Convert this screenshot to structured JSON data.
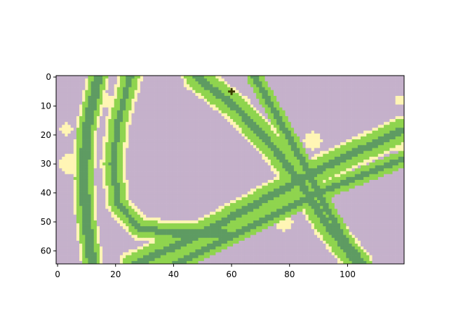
{
  "chart_data": {
    "type": "heatmap",
    "title": "",
    "xlabel": "",
    "ylabel": "",
    "grid": false,
    "legend": "none",
    "image": {
      "cols": 120,
      "rows": 65,
      "origin": "upper"
    },
    "xlim": [
      -0.5,
      119.5
    ],
    "ylim": [
      64.5,
      -0.5
    ],
    "x_ticks": [
      0,
      20,
      40,
      60,
      80,
      100
    ],
    "y_ticks": [
      0,
      10,
      20,
      30,
      40,
      50,
      60
    ],
    "x_tick_labels": [
      "0",
      "20",
      "40",
      "60",
      "80",
      "100"
    ],
    "y_tick_labels": [
      "0",
      "10",
      "20",
      "30",
      "40",
      "50",
      "60"
    ],
    "classes": [
      {
        "id": 0,
        "color": "#c5b1cb"
      },
      {
        "id": 1,
        "color": "#fff5b5"
      },
      {
        "id": 2,
        "color": "#8fd44e"
      },
      {
        "id": 3,
        "color": "#5e9b62"
      }
    ],
    "marker": {
      "x": 60,
      "y": 5,
      "symbol": "plus",
      "color": "#3b3b00"
    },
    "bands": [
      {
        "points": [
          [
            12,
            65
          ],
          [
            10,
            50
          ],
          [
            9,
            35
          ],
          [
            10,
            18
          ],
          [
            14,
            0
          ]
        ],
        "layers": [
          [
            3.8,
            1
          ],
          [
            3.0,
            2
          ],
          [
            1.6,
            3
          ]
        ]
      },
      {
        "points": [
          [
            25,
            0
          ],
          [
            21,
            15
          ],
          [
            19,
            30
          ],
          [
            21,
            44
          ],
          [
            28,
            52
          ],
          [
            40,
            54
          ],
          [
            58,
            54
          ]
        ],
        "layers": [
          [
            4.2,
            1
          ],
          [
            3.0,
            2
          ],
          [
            1.0,
            3
          ]
        ]
      },
      {
        "points": [
          [
            48,
            0
          ],
          [
            62,
            11
          ],
          [
            75,
            25
          ],
          [
            84,
            37
          ],
          [
            93,
            51
          ],
          [
            104,
            65
          ]
        ],
        "layers": [
          [
            5.0,
            1
          ],
          [
            4.0,
            2
          ],
          [
            1.3,
            3
          ]
        ]
      },
      {
        "points": [
          [
            26,
            65
          ],
          [
            48,
            55
          ],
          [
            70,
            43
          ],
          [
            92,
            31
          ],
          [
            120,
            18
          ]
        ],
        "layers": [
          [
            5.0,
            1
          ],
          [
            4.0,
            2
          ],
          [
            1.3,
            3
          ]
        ]
      },
      {
        "points": [
          [
            68,
            0
          ],
          [
            76,
            14
          ],
          [
            86,
            32
          ],
          [
            92,
            44
          ],
          [
            100,
            58
          ],
          [
            106,
            65
          ]
        ],
        "layers": [
          [
            2.8,
            2
          ],
          [
            1.1,
            3
          ]
        ]
      },
      {
        "points": [
          [
            40,
            65
          ],
          [
            66,
            52
          ],
          [
            90,
            40
          ],
          [
            120,
            28
          ]
        ],
        "layers": [
          [
            2.8,
            2
          ],
          [
            1.1,
            3
          ]
        ]
      }
    ],
    "patches": [
      {
        "cx": 4,
        "cy": 30,
        "r": 3.2,
        "value": 1
      },
      {
        "cx": 3,
        "cy": 18,
        "r": 2.0,
        "value": 1
      },
      {
        "cx": 16,
        "cy": 8,
        "r": 2.6,
        "value": 1
      },
      {
        "cx": 88,
        "cy": 22,
        "r": 3.0,
        "value": 1
      },
      {
        "cx": 78,
        "cy": 50,
        "r": 3.0,
        "value": 1
      },
      {
        "cx": 82,
        "cy": 41,
        "r": 2.0,
        "value": 0
      },
      {
        "cx": 34,
        "cy": 51,
        "r": 2.2,
        "value": 1
      },
      {
        "cx": 118,
        "cy": 24,
        "r": 1.5,
        "value": 1
      },
      {
        "cx": 118,
        "cy": 8,
        "r": 1.5,
        "value": 1
      }
    ]
  }
}
